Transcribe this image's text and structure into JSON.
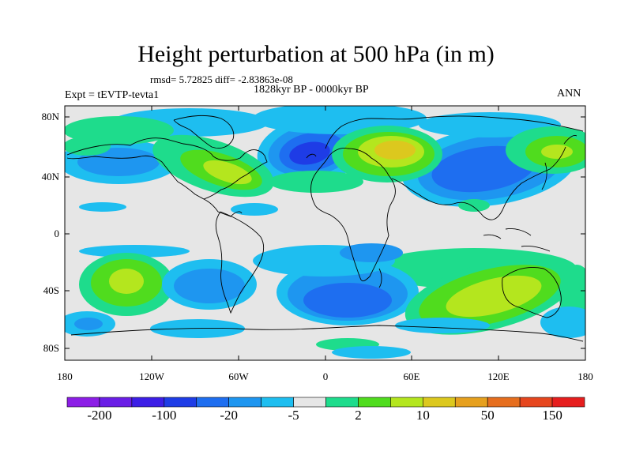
{
  "title": "Height perturbation at 500 hPa (in m)",
  "stats": "rmsd= 5.72825 diff= -2.83863e-08",
  "period": "1828kyr BP - 0000kyr BP",
  "experiment": "Expt = tEVTP-tevta1",
  "season": "ANN",
  "lat_axis": [
    "80N",
    "40N",
    "0",
    "40S",
    "80S"
  ],
  "lon_axis": [
    "180",
    "120W",
    "60W",
    "0",
    "60E",
    "120E",
    "180"
  ],
  "colorbar": {
    "colors": [
      "#8c1ee6",
      "#6a1ee6",
      "#3c1ee6",
      "#1e3ce6",
      "#1e6ef0",
      "#1e96f0",
      "#1ebef0",
      "#e6e6e6",
      "#1edc8c",
      "#50dc1e",
      "#b4e61e",
      "#dcc81e",
      "#e6a01e",
      "#e66e1e",
      "#e6461e",
      "#e61e1e"
    ],
    "labels": [
      "-200",
      "-100",
      "-20",
      "-5",
      "2",
      "10",
      "50",
      "150"
    ]
  },
  "field_colors": {
    "neutral": "#e6e6e6",
    "neg_weak": "#1ebef0",
    "neg_mid": "#1e96f0",
    "neg_strong": "#1e6ef0",
    "neg_core": "#1e3ce6",
    "pos_weak": "#1edc8c",
    "pos_mid": "#50dc1e",
    "pos_strong": "#b4e61e",
    "pos_core": "#dcc81e",
    "pos_peak": "#e6a01e"
  }
}
